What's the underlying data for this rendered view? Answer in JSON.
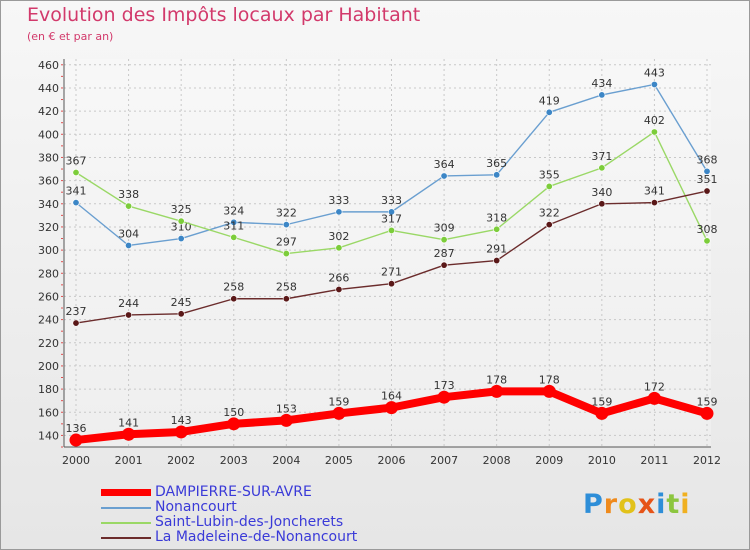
{
  "colors": {
    "title": "#d2396b",
    "grid": "#c8c8c8",
    "axis_text": "#333333",
    "label_text": "#333333",
    "legend_text": "#3a3ad8",
    "background_top": "#f7f7f7",
    "background_bottom": "#e6e6e6"
  },
  "chart_data": {
    "type": "line",
    "title": "Evolution des Impôts locaux par Habitant",
    "subtitle": "(en € et par an)",
    "xlabel": "",
    "ylabel": "",
    "x": [
      "2000",
      "2001",
      "2002",
      "2003",
      "2004",
      "2005",
      "2006",
      "2007",
      "2008",
      "2009",
      "2010",
      "2011",
      "2012"
    ],
    "y_ticks": [
      140,
      160,
      180,
      200,
      220,
      240,
      260,
      280,
      300,
      320,
      340,
      360,
      380,
      400,
      420,
      440,
      460
    ],
    "ylim": [
      130,
      465
    ],
    "grid": true,
    "legend_position": "bottom-left",
    "series": [
      {
        "name": "DAMPIERRE-SUR-AVRE",
        "color": "#ff0000",
        "width": "thick",
        "values": [
          136,
          141,
          143,
          150,
          153,
          159,
          164,
          173,
          178,
          178,
          159,
          172,
          159
        ]
      },
      {
        "name": "Nonancourt",
        "color": "#6a9fd0",
        "marker": "#3c86c6",
        "width": "thin",
        "values": [
          341,
          304,
          310,
          324,
          322,
          333,
          333,
          364,
          365,
          419,
          434,
          443,
          368
        ]
      },
      {
        "name": "Saint-Lubin-des-Joncherets",
        "color": "#9ad866",
        "marker": "#7ccd3a",
        "width": "thin",
        "values": [
          367,
          338,
          325,
          311,
          297,
          302,
          317,
          309,
          318,
          355,
          371,
          402,
          308
        ]
      },
      {
        "name": "La Madeleine-de-Nonancourt",
        "color": "#6b2c2c",
        "marker": "#5a1818",
        "width": "thin",
        "values": [
          237,
          244,
          245,
          258,
          258,
          266,
          271,
          287,
          291,
          322,
          340,
          341,
          351
        ]
      }
    ]
  },
  "logo": {
    "letters": [
      {
        "char": "P",
        "color": "#2e8ed8"
      },
      {
        "char": "r",
        "color": "#ef8a1c"
      },
      {
        "char": "o",
        "color": "#e2c21a"
      },
      {
        "char": "x",
        "color": "#e65418"
      },
      {
        "char": "i",
        "color": "#2e8ed8"
      },
      {
        "char": "t",
        "color": "#8cc63f"
      },
      {
        "char": "i",
        "color": "#f0b020"
      }
    ]
  }
}
